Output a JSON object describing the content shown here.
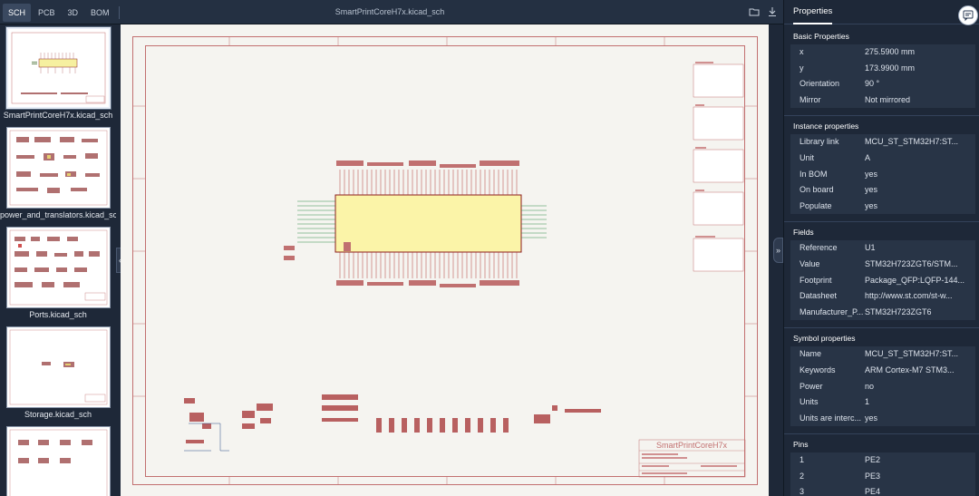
{
  "tabs": [
    {
      "label": "SCH",
      "active": true
    },
    {
      "label": "PCB",
      "active": false
    },
    {
      "label": "3D",
      "active": false
    },
    {
      "label": "BOM",
      "active": false
    }
  ],
  "title": "SmartPrintCoreH7x.kicad_sch",
  "icons": {
    "open": "folder-icon",
    "download": "download-icon",
    "chat": "chat-icon"
  },
  "sheets": [
    {
      "label": "SmartPrintCoreH7x.kicad_sch",
      "selected": true
    },
    {
      "label": "power_and_translators.kicad_sch",
      "selected": false
    },
    {
      "label": "Ports.kicad_sch",
      "selected": false
    },
    {
      "label": "Storage.kicad_sch",
      "selected": false
    },
    {
      "label": "",
      "selected": false
    }
  ],
  "title_block": {
    "project": "SmartPrintCoreH7x"
  },
  "panel": {
    "tab": "Properties",
    "sections": [
      {
        "title": "Basic Properties",
        "rows": [
          {
            "key": "x",
            "value": "275.5900 mm"
          },
          {
            "key": "y",
            "value": "173.9900 mm"
          },
          {
            "key": "Orientation",
            "value": "90 °"
          },
          {
            "key": "Mirror",
            "value": "Not mirrored"
          }
        ]
      },
      {
        "title": "Instance properties",
        "rows": [
          {
            "key": "Library link",
            "value": "MCU_ST_STM32H7:ST..."
          },
          {
            "key": "Unit",
            "value": "A"
          },
          {
            "key": "In BOM",
            "value": "yes"
          },
          {
            "key": "On board",
            "value": "yes"
          },
          {
            "key": "Populate",
            "value": "yes"
          }
        ]
      },
      {
        "title": "Fields",
        "rows": [
          {
            "key": "Reference",
            "value": "U1"
          },
          {
            "key": "Value",
            "value": "STM32H723ZGT6/STM..."
          },
          {
            "key": "Footprint",
            "value": "Package_QFP:LQFP-144..."
          },
          {
            "key": "Datasheet",
            "value": "http://www.st.com/st-w..."
          },
          {
            "key": "Manufacturer_P...",
            "value": "STM32H723ZGT6"
          }
        ]
      },
      {
        "title": "Symbol properties",
        "rows": [
          {
            "key": "Name",
            "value": "MCU_ST_STM32H7:ST..."
          },
          {
            "key": "Keywords",
            "value": "ARM Cortex-M7 STM3..."
          },
          {
            "key": "Power",
            "value": "no"
          },
          {
            "key": "Units",
            "value": "1"
          },
          {
            "key": "Units are interc...",
            "value": "yes"
          }
        ]
      },
      {
        "title": "Pins",
        "rows": [
          {
            "key": "1",
            "value": "PE2"
          },
          {
            "key": "2",
            "value": "PE3"
          },
          {
            "key": "3",
            "value": "PE4"
          }
        ]
      }
    ]
  }
}
